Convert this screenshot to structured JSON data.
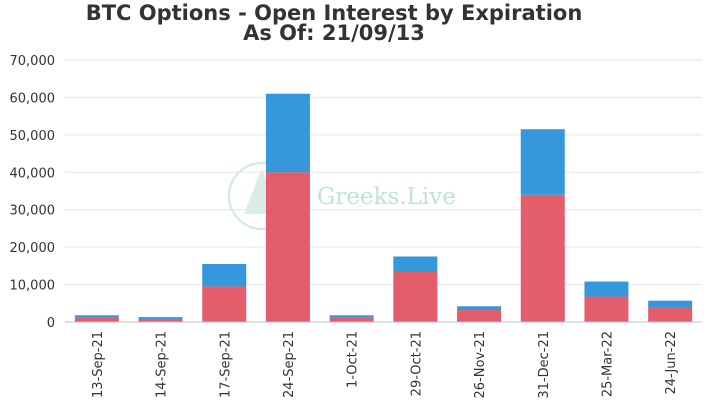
{
  "chart_data": {
    "type": "bar",
    "stacked": true,
    "title": "BTC Options - Open Interest by Expiration",
    "subtitle": "As Of: 21/09/13",
    "xlabel": "",
    "ylabel": "",
    "ylim": [
      0,
      70000
    ],
    "yticks": [
      "0",
      "10,000",
      "20,000",
      "30,000",
      "40,000",
      "50,000",
      "60,000",
      "70,000"
    ],
    "grid": true,
    "legend": "none",
    "categories": [
      "13-Sep-21",
      "14-Sep-21",
      "17-Sep-21",
      "24-Sep-21",
      "1-Oct-21",
      "29-Oct-21",
      "26-Nov-21",
      "31-Dec-21",
      "25-Mar-22",
      "24-Jun-22"
    ],
    "series": [
      {
        "color": "#e35d6a",
        "values": [
          1100,
          800,
          9500,
          40000,
          1100,
          13500,
          3200,
          34000,
          6800,
          4000
        ]
      },
      {
        "color": "#3498db",
        "values": [
          700,
          500,
          6000,
          21000,
          700,
          4000,
          1000,
          17500,
          4000,
          1700
        ]
      }
    ],
    "watermark": "Greeks.Live"
  }
}
